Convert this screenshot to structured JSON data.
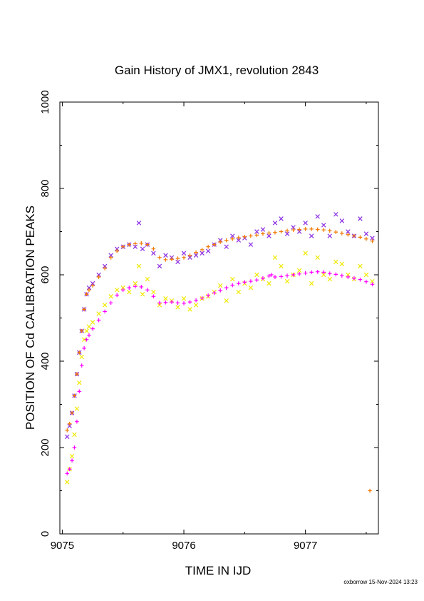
{
  "chart_data": {
    "type": "scatter",
    "title": "Gain History of JMX1, revolution 2843",
    "xlabel": "TIME IN IJD",
    "ylabel": "POSITION OF Cd CALIBRATION PEAKS",
    "xlim": [
      9074.98,
      9077.6
    ],
    "ylim": [
      0,
      1000
    ],
    "xticks": [
      9075,
      9076,
      9077
    ],
    "xtick_labels": [
      "9075",
      "9076",
      "9077"
    ],
    "yticks": [
      0,
      200,
      400,
      600,
      800,
      1000
    ],
    "ytick_labels": [
      "0",
      "200",
      "400",
      "600",
      "800",
      "1000"
    ],
    "grid": false,
    "legend": "none",
    "series": [
      {
        "marker": "x",
        "color": "#8a2be2",
        "x": [
          9075.04,
          9075.06,
          9075.08,
          9075.1,
          9075.12,
          9075.14,
          9075.16,
          9075.18,
          9075.2,
          9075.22,
          9075.25,
          9075.3,
          9075.35,
          9075.4,
          9075.45,
          9075.5,
          9075.55,
          9075.6,
          9075.63,
          9075.66,
          9075.7,
          9075.75,
          9075.8,
          9075.85,
          9075.9,
          9075.95,
          9076.0,
          9076.05,
          9076.1,
          9076.15,
          9076.2,
          9076.25,
          9076.3,
          9076.35,
          9076.4,
          9076.45,
          9076.5,
          9076.55,
          9076.6,
          9076.65,
          9076.7,
          9076.75,
          9076.8,
          9076.85,
          9076.9,
          9076.95,
          9077.0,
          9077.05,
          9077.1,
          9077.15,
          9077.2,
          9077.25,
          9077.3,
          9077.35,
          9077.4,
          9077.45,
          9077.5,
          9077.55
        ],
        "y": [
          225,
          250,
          280,
          320,
          370,
          420,
          470,
          520,
          555,
          570,
          580,
          600,
          620,
          645,
          660,
          665,
          670,
          665,
          720,
          660,
          670,
          650,
          620,
          645,
          640,
          630,
          650,
          640,
          645,
          650,
          655,
          670,
          680,
          665,
          690,
          680,
          685,
          670,
          700,
          705,
          690,
          720,
          730,
          695,
          710,
          700,
          720,
          690,
          735,
          715,
          690,
          740,
          725,
          700,
          690,
          730,
          695,
          685
        ]
      },
      {
        "marker": "x",
        "color": "#f0e800",
        "x": [
          9075.04,
          9075.06,
          9075.08,
          9075.1,
          9075.12,
          9075.14,
          9075.16,
          9075.18,
          9075.2,
          9075.22,
          9075.25,
          9075.3,
          9075.35,
          9075.4,
          9075.45,
          9075.5,
          9075.55,
          9075.6,
          9075.63,
          9075.66,
          9075.7,
          9075.75,
          9075.8,
          9075.85,
          9075.9,
          9075.95,
          9076.0,
          9076.05,
          9076.1,
          9076.15,
          9076.2,
          9076.25,
          9076.3,
          9076.35,
          9076.4,
          9076.45,
          9076.5,
          9076.55,
          9076.6,
          9076.65,
          9076.7,
          9076.75,
          9076.8,
          9076.85,
          9076.9,
          9076.95,
          9077.0,
          9077.05,
          9077.1,
          9077.15,
          9077.2,
          9077.25,
          9077.3,
          9077.35,
          9077.4,
          9077.45,
          9077.5,
          9077.55
        ],
        "y": [
          120,
          150,
          180,
          230,
          290,
          350,
          410,
          450,
          470,
          480,
          490,
          510,
          530,
          550,
          565,
          570,
          560,
          580,
          620,
          555,
          590,
          560,
          530,
          545,
          540,
          525,
          545,
          520,
          530,
          545,
          550,
          560,
          575,
          540,
          590,
          560,
          580,
          570,
          600,
          590,
          580,
          640,
          620,
          585,
          600,
          610,
          650,
          580,
          640,
          600,
          590,
          630,
          625,
          600,
          590,
          620,
          600,
          585
        ]
      },
      {
        "marker": "+",
        "color": "#f07800",
        "x": [
          9075.04,
          9075.06,
          9075.08,
          9075.1,
          9075.12,
          9075.14,
          9075.16,
          9075.18,
          9075.2,
          9075.22,
          9075.25,
          9075.3,
          9075.35,
          9075.4,
          9075.45,
          9075.5,
          9075.55,
          9075.6,
          9075.65,
          9075.7,
          9075.75,
          9075.8,
          9075.85,
          9075.9,
          9075.95,
          9076.0,
          9076.05,
          9076.1,
          9076.15,
          9076.2,
          9076.25,
          9076.3,
          9076.35,
          9076.4,
          9076.45,
          9076.5,
          9076.55,
          9076.6,
          9076.65,
          9076.7,
          9076.75,
          9076.8,
          9076.85,
          9076.9,
          9076.95,
          9077.0,
          9077.05,
          9077.1,
          9077.15,
          9077.2,
          9077.25,
          9077.3,
          9077.35,
          9077.4,
          9077.45,
          9077.5,
          9077.55,
          9077.53
        ],
        "y": [
          240,
          255,
          280,
          320,
          370,
          420,
          470,
          520,
          555,
          565,
          575,
          595,
          615,
          640,
          655,
          665,
          670,
          672,
          673,
          670,
          660,
          640,
          635,
          636,
          638,
          640,
          645,
          652,
          658,
          665,
          670,
          676,
          680,
          683,
          686,
          688,
          690,
          692,
          695,
          697,
          698,
          700,
          702,
          704,
          705,
          706,
          706,
          705,
          704,
          702,
          699,
          696,
          693,
          690,
          687,
          683,
          678,
          100
        ]
      },
      {
        "marker": "+",
        "color": "#ff00ff",
        "x": [
          9075.04,
          9075.06,
          9075.08,
          9075.1,
          9075.12,
          9075.14,
          9075.16,
          9075.18,
          9075.2,
          9075.22,
          9075.25,
          9075.3,
          9075.35,
          9075.4,
          9075.45,
          9075.5,
          9075.55,
          9075.6,
          9075.65,
          9075.7,
          9075.75,
          9075.8,
          9075.85,
          9075.9,
          9075.95,
          9076.0,
          9076.05,
          9076.1,
          9076.15,
          9076.2,
          9076.25,
          9076.3,
          9076.35,
          9076.4,
          9076.45,
          9076.5,
          9076.55,
          9076.6,
          9076.65,
          9076.7,
          9076.72,
          9076.75,
          9076.8,
          9076.85,
          9076.9,
          9076.95,
          9077.0,
          9077.05,
          9077.1,
          9077.15,
          9077.2,
          9077.25,
          9077.3,
          9077.35,
          9077.4,
          9077.45,
          9077.5,
          9077.55
        ],
        "y": [
          140,
          150,
          170,
          200,
          260,
          330,
          390,
          430,
          450,
          460,
          475,
          495,
          515,
          535,
          553,
          565,
          570,
          573,
          572,
          565,
          550,
          535,
          536,
          537,
          535,
          534,
          537,
          541,
          546,
          552,
          558,
          564,
          570,
          576,
          580,
          583,
          585,
          588,
          592,
          597,
          600,
          595,
          596,
          598,
          600,
          602,
          604,
          606,
          607,
          606,
          603,
          601,
          598,
          595,
          592,
          589,
          584,
          578
        ]
      }
    ]
  },
  "footer": "oxborrow 15-Nov-2024 13:23"
}
